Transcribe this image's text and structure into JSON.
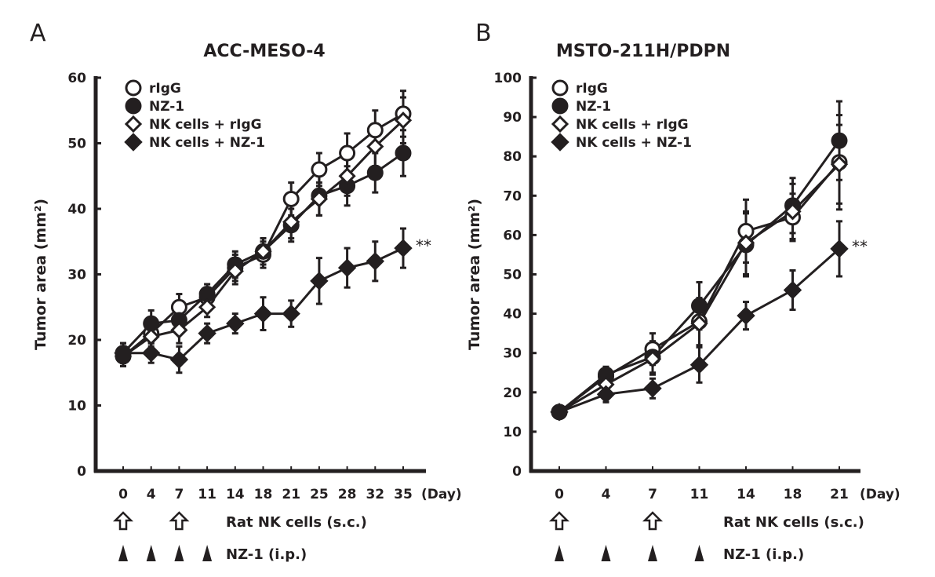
{
  "colors": {
    "ink": "#231f20",
    "background": "#ffffff"
  },
  "chart_data": [
    {
      "panel": "A",
      "type": "line",
      "title": "ACC-MESO-4",
      "xlabel": "(Day)",
      "ylabel": "Tumor area (mm²)",
      "ylim": [
        0,
        60
      ],
      "yticks": [
        "0",
        "10",
        "20",
        "30",
        "40",
        "50",
        "60"
      ],
      "categories": [
        "0",
        "4",
        "7",
        "11",
        "14",
        "18",
        "21",
        "25",
        "28",
        "32",
        "35"
      ],
      "grid": false,
      "legend_position": "top-left",
      "series": [
        {
          "name": "rIgG",
          "marker": "open-circle",
          "values": [
            17.5,
            21,
            25,
            26.5,
            31,
            33,
            41.5,
            46,
            48.5,
            52,
            54.5
          ],
          "err": [
            1.5,
            1.5,
            2,
            1.5,
            2,
            2,
            2.5,
            2.5,
            3,
            3,
            3.5
          ]
        },
        {
          "name": "NZ-1",
          "marker": "filled-circle",
          "values": [
            18,
            22.5,
            23,
            27,
            31.5,
            33.5,
            37.5,
            42,
            43.5,
            45.5,
            48.5
          ],
          "err": [
            1.5,
            2,
            2,
            1.5,
            2,
            2,
            2.5,
            3,
            3,
            3,
            3.5
          ]
        },
        {
          "name": "NK cells + rIgG",
          "marker": "open-diamond",
          "values": [
            17.5,
            20.5,
            21.5,
            25,
            30.5,
            33.5,
            38,
            41.5,
            45,
            49.5,
            53.5
          ],
          "err": [
            1.5,
            1.5,
            2,
            1.5,
            2,
            2,
            2.5,
            2.5,
            3,
            3,
            3.5
          ]
        },
        {
          "name": "NK cells + NZ-1",
          "marker": "filled-diamond",
          "values": [
            18,
            18,
            17,
            21,
            22.5,
            24,
            24,
            29,
            31,
            32,
            34
          ],
          "err": [
            1.5,
            1.5,
            2,
            1.5,
            1.5,
            2.5,
            2,
            3.5,
            3,
            3,
            3
          ]
        }
      ],
      "annotation": "**",
      "schedule": {
        "nk_label": "Rat NK cells (s.c.)",
        "nk_days": [
          "0",
          "7"
        ],
        "nz1_label": "NZ-1 (i.p.)",
        "nz1_days": [
          "0",
          "4",
          "7",
          "11"
        ]
      }
    },
    {
      "panel": "B",
      "type": "line",
      "title": "MSTO-211H/PDPN",
      "xlabel": "(Day)",
      "ylabel": "Tumor area (mm²)",
      "ylim": [
        0,
        100
      ],
      "yticks": [
        "0",
        "10",
        "20",
        "30",
        "40",
        "50",
        "60",
        "70",
        "80",
        "90",
        "100"
      ],
      "categories": [
        "0",
        "4",
        "7",
        "11",
        "14",
        "18",
        "21"
      ],
      "grid": false,
      "legend_position": "top-left",
      "series": [
        {
          "name": "rIgG",
          "marker": "open-circle",
          "values": [
            15,
            24,
            31,
            38,
            61,
            64.5,
            78.5
          ],
          "err": [
            1,
            2,
            4,
            6,
            8,
            6,
            12
          ]
        },
        {
          "name": "NZ-1",
          "marker": "filled-circle",
          "values": [
            15,
            24.5,
            29,
            42,
            57.5,
            67.5,
            84
          ],
          "err": [
            1,
            2,
            4,
            6,
            8,
            7,
            10
          ]
        },
        {
          "name": "NK cells + rIgG",
          "marker": "open-diamond",
          "values": [
            15,
            22,
            28.5,
            37.5,
            58,
            66,
            78
          ],
          "err": [
            1,
            2,
            4,
            6,
            8,
            7,
            10
          ]
        },
        {
          "name": "NK cells + NZ-1",
          "marker": "filled-diamond",
          "values": [
            15,
            19.5,
            21,
            27,
            39.5,
            46,
            56.5
          ],
          "err": [
            1,
            2,
            2.5,
            4.5,
            3.5,
            5,
            7
          ]
        }
      ],
      "annotation": "**",
      "schedule": {
        "nk_label": "Rat NK cells (s.c.)",
        "nk_days": [
          "0",
          "7"
        ],
        "nz1_label": "NZ-1 (i.p.)",
        "nz1_days": [
          "0",
          "4",
          "7",
          "11"
        ]
      }
    }
  ]
}
